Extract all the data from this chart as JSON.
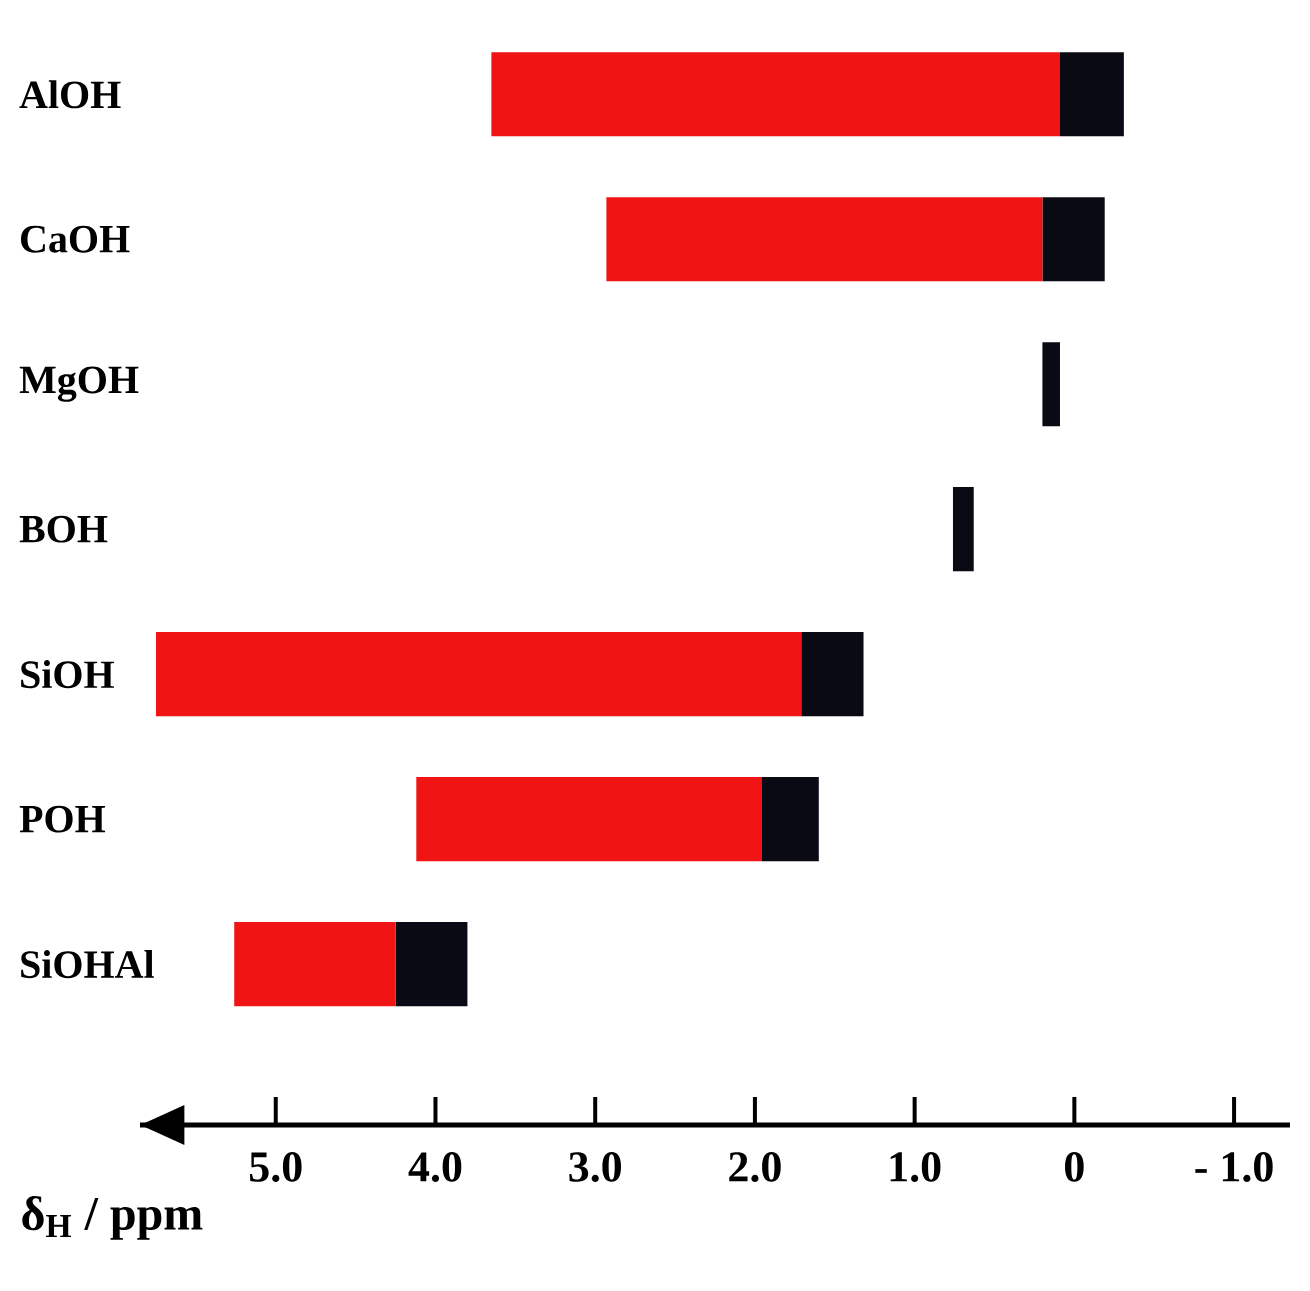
{
  "chart_data": {
    "type": "bar",
    "orientation": "horizontal",
    "categories": [
      "AlOH",
      "CaOH",
      "MgOH",
      "BOH",
      "SiOH",
      "POH",
      "SiOHAl"
    ],
    "series": [
      {
        "color": "#0a0a14",
        "base": [
          -0.31,
          -0.19,
          0.09,
          0.63,
          1.32,
          1.6,
          3.8
        ],
        "values": [
          0.4,
          0.39,
          0.11,
          0.13,
          0.39,
          0.36,
          0.45
        ]
      },
      {
        "color": "#f01414",
        "base": [
          0.09,
          0.2,
          null,
          null,
          1.71,
          1.96,
          4.25
        ],
        "values": [
          3.56,
          2.73,
          null,
          null,
          4.04,
          2.16,
          1.01
        ]
      }
    ],
    "xlabel": "δ$_{H}$ / ppm",
    "xlim": [
      5.85,
      -1.35
    ],
    "xticks": [
      {
        "value": 5,
        "label": "5.0"
      },
      {
        "value": 4,
        "label": "4.0"
      },
      {
        "value": 3,
        "label": "3.0"
      },
      {
        "value": 2,
        "label": "2.0"
      },
      {
        "value": 1,
        "label": "1.0"
      },
      {
        "value": 0,
        "label": "0"
      },
      {
        "value": -1,
        "label": "- 1.0"
      }
    ]
  }
}
